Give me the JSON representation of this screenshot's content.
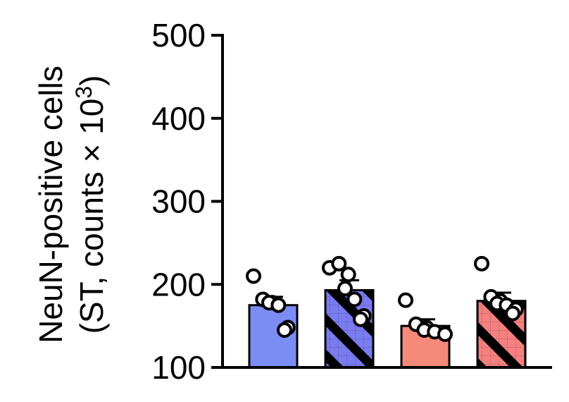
{
  "chart_data": {
    "type": "bar",
    "title": "",
    "ylabel_line1": "NeuN-positive cells",
    "ylabel_line2_pre": "(ST, counts × 10",
    "ylabel_sup": "3",
    "ylabel_line2_post": ")",
    "xlabel": "",
    "ylim": [
      100,
      500
    ],
    "yticks": [
      100,
      200,
      300,
      400,
      500
    ],
    "yticklabels": [
      "100",
      "200",
      "300",
      "400",
      "500"
    ],
    "bars": [
      {
        "value": 175,
        "error": 10,
        "color": "#7b8cf5",
        "hatched": false,
        "points": [
          210,
          182,
          178,
          178,
          175,
          148,
          145
        ]
      },
      {
        "value": 193,
        "error": 12,
        "color": "#7b7bf0",
        "hatched": true,
        "points": [
          220,
          225,
          212,
          195,
          182,
          162,
          158
        ]
      },
      {
        "value": 150,
        "error": 8,
        "color": "#f58a7a",
        "hatched": false,
        "points": [
          181,
          152,
          148,
          145,
          143,
          140
        ]
      },
      {
        "value": 180,
        "error": 10,
        "color": "#f58080",
        "hatched": true,
        "points": [
          225,
          185,
          180,
          177,
          175,
          170,
          165
        ]
      }
    ]
  }
}
